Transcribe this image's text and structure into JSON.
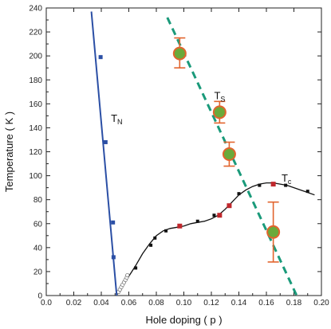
{
  "chart_data": {
    "type": "scatter",
    "xlabel": "Hole doping ( p )",
    "ylabel": "Temperature ( K )",
    "xlim": [
      0.0,
      0.2
    ],
    "ylim": [
      0,
      240
    ],
    "xticks": [
      "0.0",
      "0.02",
      "0.04",
      "0.06",
      "0.08",
      "0.10",
      "0.12",
      "0.14",
      "0.16",
      "0.18",
      "0.20"
    ],
    "yticks": [
      "0",
      "20",
      "40",
      "60",
      "80",
      "100",
      "120",
      "140",
      "160",
      "180",
      "200",
      "220",
      "240"
    ],
    "grid": false,
    "annotations": [
      {
        "id": "tn",
        "main": "T",
        "sub": "N",
        "x": 0.047,
        "y": 145
      },
      {
        "id": "ts",
        "main": "T",
        "sub": "S",
        "x": 0.122,
        "y": 164
      },
      {
        "id": "tc",
        "main": "T",
        "sub": "c",
        "x": 0.171,
        "y": 95
      }
    ],
    "series": [
      {
        "id": "tn",
        "color": "#2b4fa5",
        "line": [
          [
            0.0328,
            237
          ],
          [
            0.0512,
            0
          ]
        ],
        "points": [
          [
            0.0395,
            199
          ],
          [
            0.0431,
            128
          ],
          [
            0.0485,
            61
          ],
          [
            0.0489,
            32
          ]
        ]
      },
      {
        "id": "tc",
        "color": "#111111",
        "curve": [
          [
            0.051,
            0
          ],
          [
            0.053,
            4
          ],
          [
            0.056,
            9
          ],
          [
            0.06,
            16
          ],
          [
            0.065,
            25
          ],
          [
            0.07,
            35
          ],
          [
            0.075,
            43
          ],
          [
            0.08,
            50
          ],
          [
            0.085,
            54
          ],
          [
            0.09,
            56
          ],
          [
            0.095,
            57
          ],
          [
            0.1,
            58
          ],
          [
            0.105,
            60
          ],
          [
            0.11,
            61
          ],
          [
            0.115,
            62
          ],
          [
            0.12,
            64
          ],
          [
            0.125,
            67
          ],
          [
            0.13,
            72
          ],
          [
            0.135,
            78
          ],
          [
            0.14,
            84
          ],
          [
            0.145,
            88
          ],
          [
            0.15,
            91
          ],
          [
            0.155,
            93
          ],
          [
            0.16,
            94
          ],
          [
            0.165,
            94
          ],
          [
            0.17,
            93
          ],
          [
            0.175,
            92
          ],
          [
            0.18,
            90
          ],
          [
            0.185,
            88
          ],
          [
            0.19,
            86
          ],
          [
            0.195,
            84
          ]
        ],
        "black_points": [
          [
            0.065,
            23
          ],
          [
            0.076,
            42
          ],
          [
            0.079,
            48
          ],
          [
            0.087,
            54
          ],
          [
            0.11,
            62
          ],
          [
            0.122,
            67
          ],
          [
            0.14,
            85
          ],
          [
            0.155,
            92
          ],
          [
            0.174,
            92
          ],
          [
            0.19,
            87
          ]
        ],
        "red_points": [
          [
            0.097,
            58
          ],
          [
            0.126,
            67
          ],
          [
            0.133,
            75
          ],
          [
            0.165,
            93
          ]
        ],
        "open_points": [
          [
            0.0525,
            3
          ],
          [
            0.0535,
            5
          ],
          [
            0.0545,
            7
          ],
          [
            0.0555,
            9
          ],
          [
            0.0565,
            11
          ],
          [
            0.0575,
            13
          ],
          [
            0.0585,
            15
          ],
          [
            0.059,
            17
          ]
        ]
      },
      {
        "id": "ts",
        "color": "#1a9a7a",
        "line": [
          [
            0.088,
            232
          ],
          [
            0.182,
            0
          ]
        ],
        "points": [
          {
            "x": 0.097,
            "y": 202,
            "err_low": 190,
            "err_high": 215
          },
          {
            "x": 0.126,
            "y": 153,
            "err_low": 144,
            "err_high": 162
          },
          {
            "x": 0.133,
            "y": 118,
            "err_low": 108,
            "err_high": 128
          },
          {
            "x": 0.165,
            "y": 53,
            "err_low": 28,
            "err_high": 78
          }
        ]
      }
    ]
  }
}
